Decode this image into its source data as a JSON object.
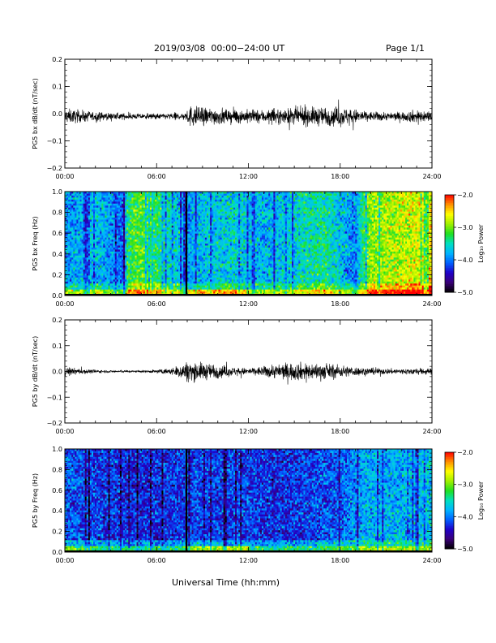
{
  "header": {
    "title": "2019/03/08  00:00−24:00 UT",
    "page": "Page 1/1"
  },
  "xlabel": "Universal Time (hh:mm)",
  "colors": {
    "background": "#ffffff",
    "trace": "#000000",
    "colormap": [
      "#000000",
      "#3a0078",
      "#2000c8",
      "#0060ff",
      "#00b4ff",
      "#00e0c0",
      "#20e020",
      "#a0f000",
      "#ffff00",
      "#ff9000",
      "#ff0000"
    ]
  },
  "chart_data": [
    {
      "type": "line",
      "ylabel": "PG5 bx dB/dt (nT/sec)",
      "x_ticks": [
        "00:00",
        "06:00",
        "12:00",
        "18:00",
        "24:00"
      ],
      "y_ticks": [
        "0.2",
        "0.1",
        "0.0",
        "−0.1",
        "−0.2"
      ],
      "xlim": [
        0,
        24
      ],
      "ylim": [
        -0.2,
        0.2
      ],
      "series": [
        {
          "x": [
            0,
            1,
            2,
            3,
            4,
            5,
            6,
            7,
            7.9,
            8.2,
            9,
            10,
            11,
            12,
            13,
            14,
            15,
            16,
            17,
            18,
            19,
            20,
            21,
            22,
            23,
            24
          ],
          "amp": [
            0.025,
            0.02,
            0.015,
            0.012,
            0.01,
            0.009,
            0.009,
            0.011,
            0.014,
            0.035,
            0.03,
            0.028,
            0.024,
            0.022,
            0.022,
            0.024,
            0.028,
            0.03,
            0.032,
            0.032,
            0.024,
            0.016,
            0.014,
            0.015,
            0.022,
            0.018
          ],
          "offset": -0.01
        }
      ]
    },
    {
      "type": "heatmap",
      "ylabel": "PG5 bx Freq (Hz)",
      "colorbar_label": "Log₁₀ Power",
      "colorbar_ticks": [
        "−2.0",
        "−3.0",
        "−4.0",
        "−5.0"
      ],
      "clim": [
        -5.0,
        -2.0
      ],
      "x_ticks": [
        "00:00",
        "06:00",
        "12:00",
        "18:00",
        "24:00"
      ],
      "y_ticks": [
        "1.0",
        "0.8",
        "0.6",
        "0.4",
        "0.2",
        "0.0"
      ],
      "xlim": [
        0,
        24
      ],
      "ylim": [
        0,
        1.0
      ],
      "gap_hour": 7.95,
      "profile": {
        "x": [
          0,
          1,
          2,
          3,
          3.9,
          4.1,
          5,
          6,
          7,
          8,
          9,
          10,
          11,
          12,
          13,
          14,
          15,
          16,
          17,
          18,
          19,
          19.5,
          20,
          21,
          22,
          23,
          24
        ],
        "level": [
          -3.9,
          -3.8,
          -3.7,
          -3.9,
          -4.1,
          -3.3,
          -3.1,
          -3.3,
          -3.6,
          -3.9,
          -3.7,
          -3.7,
          -3.6,
          -3.7,
          -3.8,
          -3.7,
          -3.6,
          -3.5,
          -3.4,
          -3.7,
          -4.0,
          -3.3,
          -2.9,
          -2.9,
          -2.8,
          -2.7,
          -2.6
        ]
      }
    },
    {
      "type": "line",
      "ylabel": "PG5 by dB/dt (nT/sec)",
      "x_ticks": [
        "00:00",
        "06:00",
        "12:00",
        "18:00",
        "24:00"
      ],
      "y_ticks": [
        "0.2",
        "0.1",
        "0.0",
        "−0.1",
        "−0.2"
      ],
      "xlim": [
        0,
        24
      ],
      "ylim": [
        -0.2,
        0.2
      ],
      "series": [
        {
          "x": [
            0,
            1,
            2,
            3,
            4,
            5,
            6,
            7,
            8,
            9,
            10,
            11,
            12,
            13,
            14,
            15,
            16,
            17,
            18,
            19,
            20,
            21,
            22,
            23,
            24
          ],
          "amp": [
            0.015,
            0.01,
            0.006,
            0.004,
            0.004,
            0.004,
            0.006,
            0.012,
            0.035,
            0.03,
            0.025,
            0.015,
            0.012,
            0.018,
            0.028,
            0.032,
            0.03,
            0.028,
            0.022,
            0.016,
            0.012,
            0.01,
            0.01,
            0.012,
            0.01
          ],
          "offset": 0.0
        }
      ]
    },
    {
      "type": "heatmap",
      "ylabel": "PG5 by Freq (Hz)",
      "colorbar_label": "Log₁₀ Power",
      "colorbar_ticks": [
        "−2.0",
        "−3.0",
        "−4.0",
        "−5.0"
      ],
      "clim": [
        -5.0,
        -2.0
      ],
      "x_ticks": [
        "00:00",
        "06:00",
        "12:00",
        "18:00",
        "24:00"
      ],
      "y_ticks": [
        "1.0",
        "0.8",
        "0.6",
        "0.4",
        "0.2",
        "0.0"
      ],
      "xlim": [
        0,
        24
      ],
      "ylim": [
        0,
        1.0
      ],
      "gap_hour": 7.95,
      "profile": {
        "x": [
          0,
          2,
          4,
          6,
          8,
          10,
          12,
          14,
          16,
          18,
          19,
          20,
          22,
          24
        ],
        "level": [
          -4.1,
          -4.2,
          -4.3,
          -4.3,
          -4.2,
          -4.2,
          -4.2,
          -4.3,
          -4.2,
          -4.1,
          -3.9,
          -3.8,
          -3.8,
          -3.7
        ]
      }
    }
  ]
}
